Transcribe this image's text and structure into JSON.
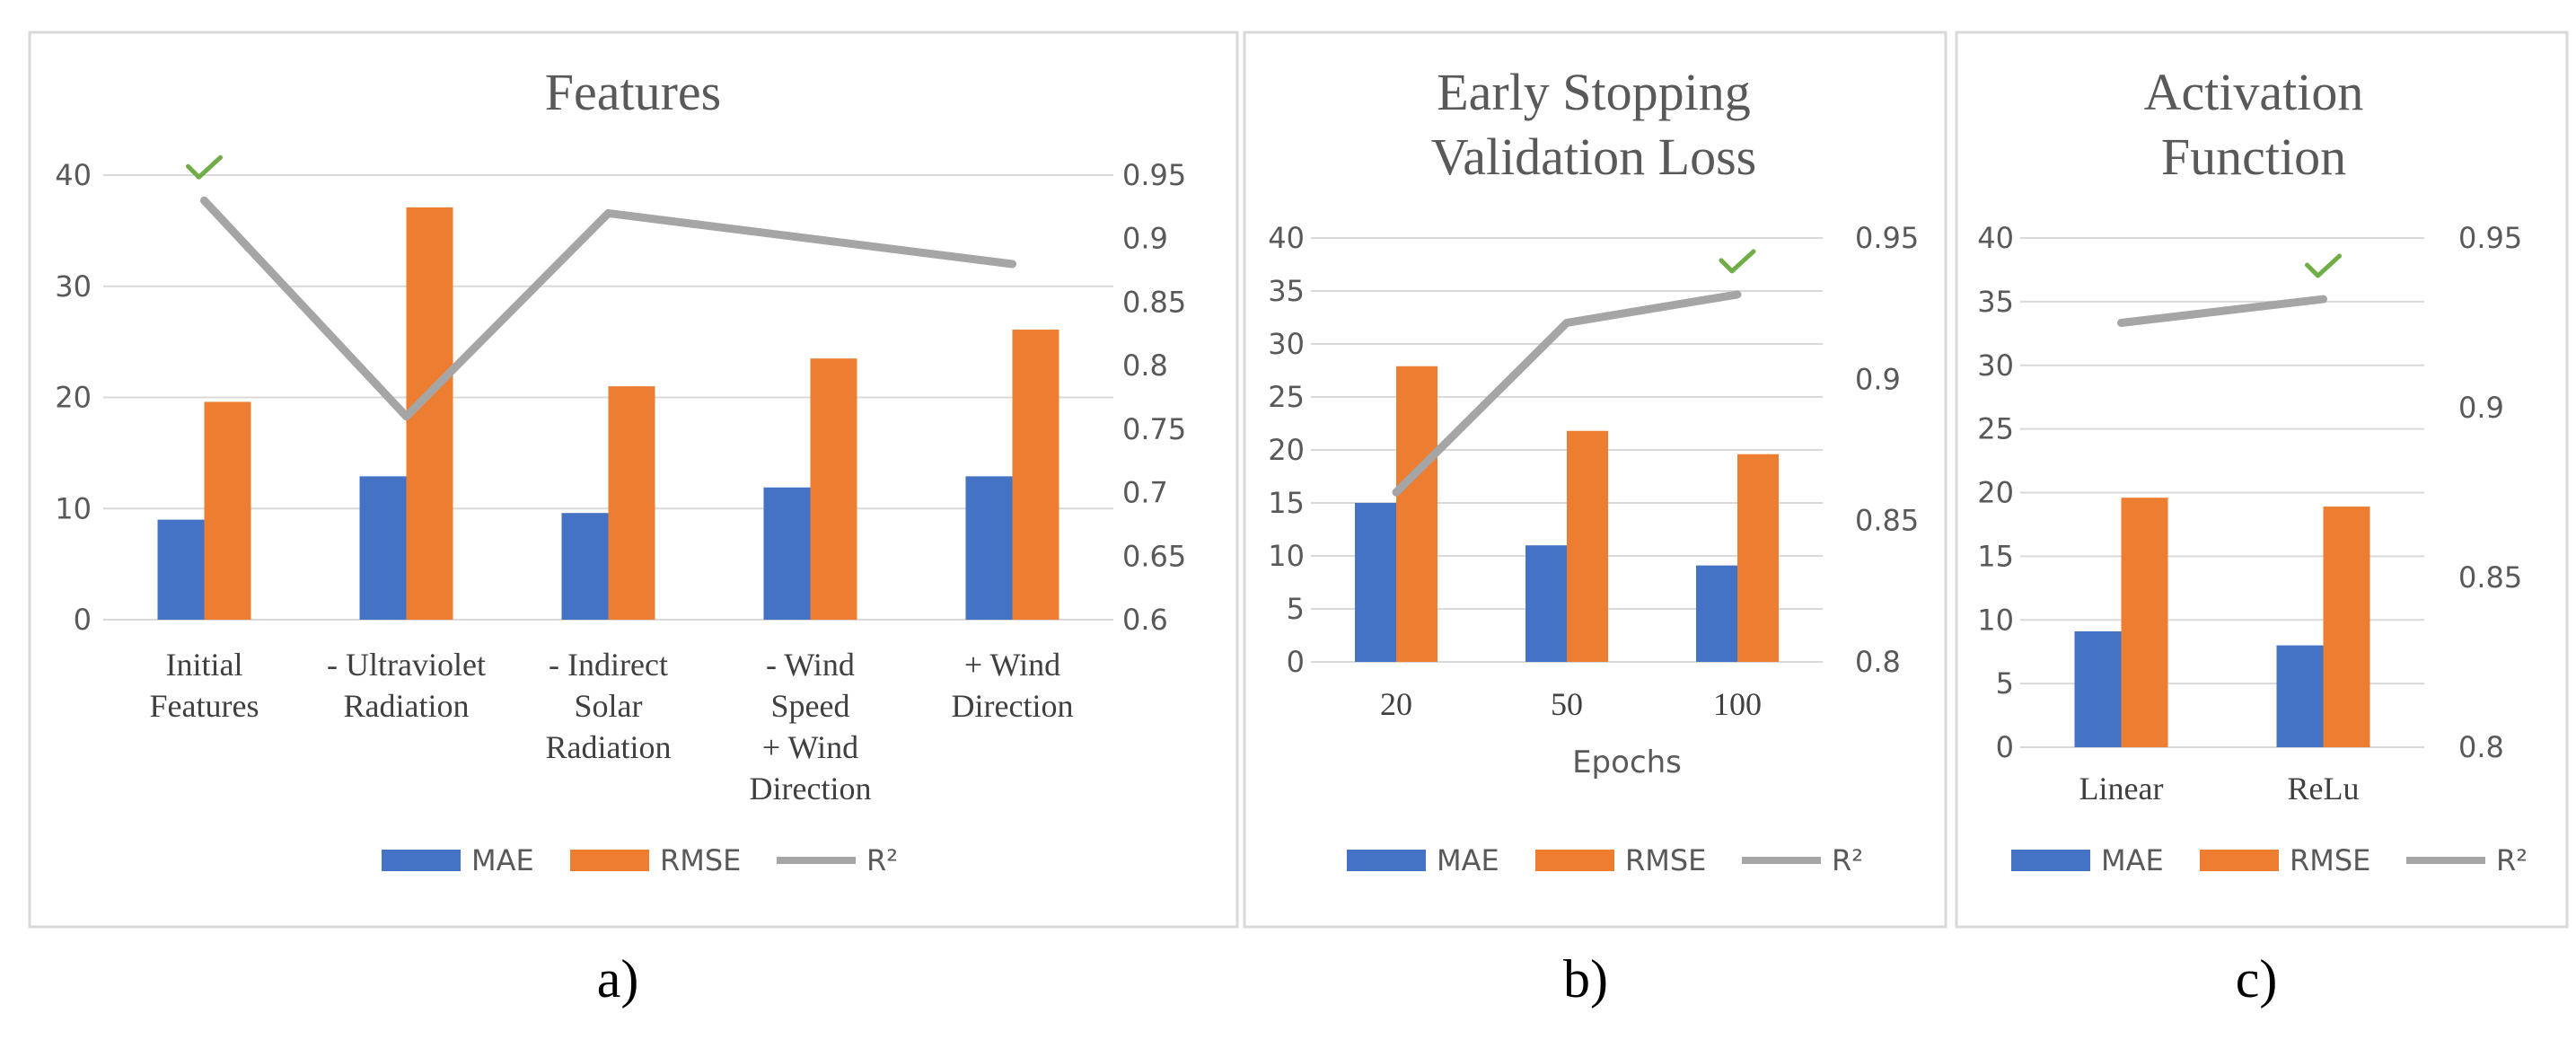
{
  "colors": {
    "mae": "#4472C4",
    "rmse": "#ED7D31",
    "r2": "#A5A5A5",
    "grid": "#D9D9D9",
    "border": "#D9D9D9",
    "axis_text": "#595959",
    "check": "#70AD47"
  },
  "chart_data": [
    {
      "type": "bar",
      "panel_label": "a)",
      "title_lines": [
        "Features"
      ],
      "xlabel": "",
      "categories": [
        [
          "Initial",
          "Features"
        ],
        [
          "- Ultraviolet",
          "Radiation"
        ],
        [
          "- Indirect",
          "Solar",
          "Radiation"
        ],
        [
          "- Wind",
          "Speed",
          "+ Wind",
          "Direction"
        ],
        [
          "+ Wind",
          "Direction"
        ]
      ],
      "series": [
        {
          "name": "MAE",
          "kind": "bar",
          "axis": "left",
          "values": [
            9.0,
            12.9,
            9.6,
            11.9,
            12.9
          ]
        },
        {
          "name": "RMSE",
          "kind": "bar",
          "axis": "left",
          "values": [
            19.6,
            37.1,
            21.0,
            23.5,
            26.1
          ]
        },
        {
          "name": "R²",
          "kind": "line",
          "axis": "right",
          "values": [
            0.93,
            0.76,
            0.92,
            0.9,
            0.88
          ]
        }
      ],
      "left_axis": {
        "min": 0,
        "max": 40,
        "ticks": [
          0,
          10,
          20,
          30,
          40
        ]
      },
      "right_axis": {
        "min": 0.6,
        "max": 0.95,
        "ticks": [
          0.6,
          0.65,
          0.7,
          0.75,
          0.8,
          0.85,
          0.9,
          0.95
        ]
      },
      "best_index": 0,
      "legend": [
        "MAE",
        "RMSE",
        "R²"
      ],
      "legend_position": "bottom"
    },
    {
      "type": "bar",
      "panel_label": "b)",
      "title_lines": [
        "Early Stopping",
        "Validation Loss"
      ],
      "xlabel": "Epochs",
      "categories": [
        [
          "20"
        ],
        [
          "50"
        ],
        [
          "100"
        ]
      ],
      "series": [
        {
          "name": "MAE",
          "kind": "bar",
          "axis": "left",
          "values": [
            15.0,
            11.0,
            9.1
          ]
        },
        {
          "name": "RMSE",
          "kind": "bar",
          "axis": "left",
          "values": [
            27.9,
            21.8,
            19.6
          ]
        },
        {
          "name": "R²",
          "kind": "line",
          "axis": "right",
          "values": [
            0.86,
            0.92,
            0.93
          ]
        }
      ],
      "left_axis": {
        "min": 0,
        "max": 40,
        "ticks": [
          0,
          5,
          10,
          15,
          20,
          25,
          30,
          35,
          40
        ]
      },
      "right_axis": {
        "min": 0.8,
        "max": 0.95,
        "ticks": [
          0.8,
          0.85,
          0.9,
          0.95
        ]
      },
      "best_index": 2,
      "legend": [
        "MAE",
        "RMSE",
        "R²"
      ],
      "legend_position": "bottom"
    },
    {
      "type": "bar",
      "panel_label": "c)",
      "title_lines": [
        "Activation",
        "Function"
      ],
      "xlabel": "",
      "categories": [
        [
          "Linear"
        ],
        [
          "ReLu"
        ]
      ],
      "series": [
        {
          "name": "MAE",
          "kind": "bar",
          "axis": "left",
          "values": [
            9.1,
            8.0
          ]
        },
        {
          "name": "RMSE",
          "kind": "bar",
          "axis": "left",
          "values": [
            19.6,
            18.9
          ]
        },
        {
          "name": "R²",
          "kind": "line",
          "axis": "right",
          "values": [
            0.925,
            0.932
          ]
        }
      ],
      "left_axis": {
        "min": 0,
        "max": 40,
        "ticks": [
          0,
          5,
          10,
          15,
          20,
          25,
          30,
          35,
          40
        ]
      },
      "right_axis": {
        "min": 0.8,
        "max": 0.95,
        "ticks": [
          0.8,
          0.85,
          0.9,
          0.95
        ]
      },
      "best_index": 1,
      "legend": [
        "MAE",
        "RMSE",
        "R²"
      ],
      "legend_position": "bottom"
    }
  ]
}
